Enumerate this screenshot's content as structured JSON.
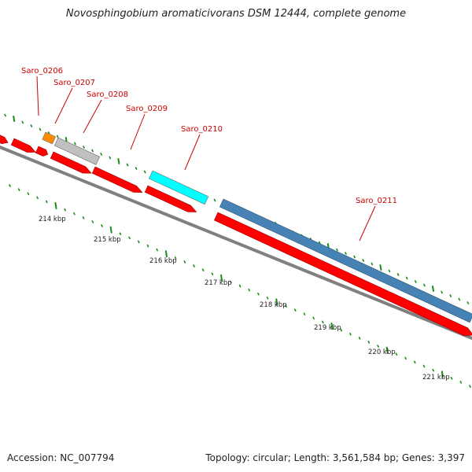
{
  "title": "Novosphingobium aromaticivorans DSM 12444, complete genome",
  "accession": "Accession: NC_007794",
  "summary": "Topology: circular; Length: 3,561,584 bp; Genes: 3,397",
  "colors": {
    "forward_strand": "#ff0000",
    "gray_gene": "#c0c0c0",
    "orange_gene": "#ff8c00",
    "cyan_gene": "#00ffff",
    "steelblue_gene": "#4682b4",
    "backbone": "#808080",
    "tick": "#1a8c1a",
    "gene_label": "#cc0000"
  },
  "scale_labels": [
    "214 kbp",
    "215 kbp",
    "216 kbp",
    "217 kbp",
    "218 kbp",
    "219 kbp",
    "220 kbp",
    "221 kbp"
  ],
  "gene_labels": [
    {
      "name": "Saro_0206",
      "color": "orange"
    },
    {
      "name": "Saro_0207",
      "color": "gray"
    },
    {
      "name": "Saro_0208",
      "color": "gray"
    },
    {
      "name": "Saro_0209",
      "color": "red"
    },
    {
      "name": "Saro_0210",
      "color": "cyan"
    },
    {
      "name": "Saro_0211",
      "color": "steelblue"
    }
  ]
}
